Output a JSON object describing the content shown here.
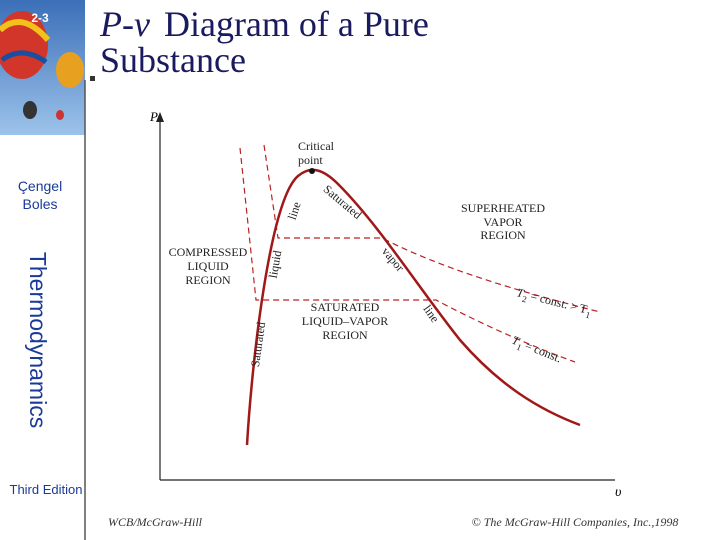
{
  "sidebar": {
    "section": "2-3",
    "authors": [
      "Çengel",
      "Boles"
    ],
    "book": "Thermodynamics",
    "edition": "Third Edition"
  },
  "header": {
    "symbol": "P-v",
    "lines": [
      "Diagram of a Pure",
      "Substance"
    ]
  },
  "diagram": {
    "axes": {
      "y": "P",
      "x": "υ"
    },
    "critical_point": [
      "Critical",
      "point"
    ],
    "superheated": [
      "SUPERHEATED",
      "VAPOR",
      "REGION"
    ],
    "compressed": [
      "COMPRESSED",
      "LIQUID",
      "REGION"
    ],
    "mixture": [
      "SATURATED",
      "LIQUID–VAPOR",
      "REGION"
    ],
    "liquid_line": [
      "Saturated",
      "liquid",
      "line"
    ],
    "vapor_line": [
      "Saturated",
      "vapor",
      "line"
    ],
    "t2": [
      "T",
      "2",
      " = const. > T",
      "1"
    ],
    "t1": [
      "T",
      "1",
      " = const."
    ]
  },
  "footer": {
    "publisher": "WCB/McGraw-Hill",
    "copyright": "© The McGraw-Hill Companies, Inc.,1998"
  }
}
